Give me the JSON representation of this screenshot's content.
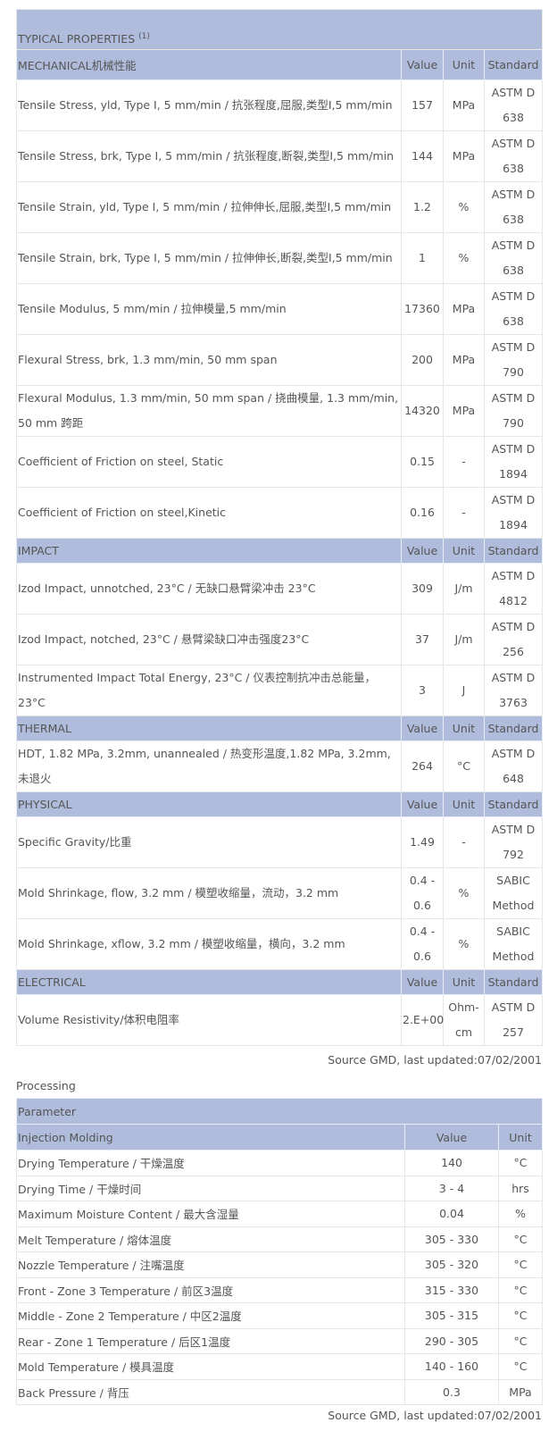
{
  "properties": {
    "title": "TYPICAL PROPERTIES",
    "title_sup": "(1)",
    "sections": [
      {
        "name": "MECHANICAL机械性能",
        "cols": [
          "Value",
          "Unit",
          "Standard"
        ],
        "rows": [
          [
            "Tensile Stress, yld, Type I, 5 mm/min / 抗张程度,屈服,类型I,5 mm/min",
            "157",
            "MPa",
            "ASTM D 638"
          ],
          [
            "Tensile Stress, brk, Type I, 5 mm/min / 抗张程度,断裂,类型I,5 mm/min",
            "144",
            "MPa",
            "ASTM D 638"
          ],
          [
            "Tensile Strain, yld, Type I, 5 mm/min / 拉伸伸长,屈服,类型I,5 mm/min",
            "1.2",
            "%",
            "ASTM D 638"
          ],
          [
            "Tensile Strain, brk, Type I, 5 mm/min / 拉伸伸长,断裂,类型I,5 mm/min",
            "1",
            "%",
            "ASTM D 638"
          ],
          [
            "Tensile Modulus, 5 mm/min / 拉伸模量,5 mm/min",
            "17360",
            "MPa",
            "ASTM D 638"
          ],
          [
            "Flexural Stress, brk, 1.3 mm/min, 50 mm span",
            "200",
            "MPa",
            "ASTM D 790"
          ],
          [
            "Flexural Modulus, 1.3 mm/min, 50 mm span / 挠曲模量, 1.3 mm/min, 50 mm 跨距",
            "14320",
            "MPa",
            "ASTM D 790"
          ],
          [
            "Coefficient of Friction on steel, Static",
            "0.15",
            "-",
            "ASTM D 1894"
          ],
          [
            "Coefficient of Friction on steel,Kinetic",
            "0.16",
            "-",
            "ASTM D 1894"
          ]
        ]
      },
      {
        "name": "IMPACT",
        "cols": [
          "Value",
          "Unit",
          "Standard"
        ],
        "rows": [
          [
            "Izod Impact, unnotched, 23°C / 无缺口悬臂梁冲击 23°C",
            "309",
            "J/m",
            "ASTM D 4812"
          ],
          [
            "Izod Impact, notched, 23°C / 悬臂梁缺口冲击强度23°C",
            "37",
            "J/m",
            "ASTM D 256"
          ],
          [
            "Instrumented Impact Total Energy, 23°C / 仪表控制抗冲击总能量，23°C",
            "3",
            "J",
            "ASTM D 3763"
          ]
        ]
      },
      {
        "name": "THERMAL",
        "cols": [
          "Value",
          "Unit",
          "Standard"
        ],
        "rows": [
          [
            "HDT, 1.82 MPa, 3.2mm, unannealed / 热变形温度,1.82 MPa, 3.2mm,未退火",
            "264",
            "°C",
            "ASTM D 648"
          ]
        ]
      },
      {
        "name": "PHYSICAL",
        "cols": [
          "Value",
          "Unit",
          "Standard"
        ],
        "rows": [
          [
            "Specific Gravity/比重",
            "1.49",
            "-",
            "ASTM D 792"
          ],
          [
            "Mold Shrinkage, flow, 3.2 mm / 模塑收缩量，流动，3.2 mm",
            "0.4 - 0.6",
            "%",
            "SABIC Method"
          ],
          [
            "Mold Shrinkage, xflow, 3.2 mm / 模塑收缩量，横向，3.2 mm",
            "0.4 - 0.6",
            "%",
            "SABIC Method"
          ]
        ]
      },
      {
        "name": "ELECTRICAL",
        "cols": [
          "Value",
          "Unit",
          "Standard"
        ],
        "rows": [
          [
            "Volume Resistivity/体积电阻率",
            "2.E+00",
            "Ohm-cm",
            "ASTM D 257"
          ]
        ]
      }
    ],
    "source": "Source GMD, last updated:07/02/2001"
  },
  "processing": {
    "label": "Processing",
    "param_header": "Parameter",
    "section": "Injection Molding",
    "cols": [
      "Value",
      "Unit"
    ],
    "rows": [
      [
        "Drying Temperature / 干燥温度",
        "140",
        "°C"
      ],
      [
        "Drying Time / 干燥时间",
        "3 - 4",
        "hrs"
      ],
      [
        "Maximum Moisture Content / 最大含湿量",
        "0.04",
        "%"
      ],
      [
        "Melt Temperature / 熔体温度",
        "305 - 330",
        "°C"
      ],
      [
        "Nozzle Temperature / 注嘴温度",
        "305 - 320",
        "°C"
      ],
      [
        "Front - Zone 3 Temperature / 前区3温度",
        "315 - 330",
        "°C"
      ],
      [
        "Middle - Zone 2 Temperature / 中区2温度",
        "305 - 315",
        "°C"
      ],
      [
        "Rear - Zone 1 Temperature / 后区1温度",
        "290 - 305",
        "°C"
      ],
      [
        "Mold Temperature / 模具温度",
        "140 - 160",
        "°C"
      ],
      [
        "Back Pressure / 背压",
        "0.3",
        "MPa"
      ]
    ],
    "source": "Source GMD, last updated:07/02/2001"
  }
}
